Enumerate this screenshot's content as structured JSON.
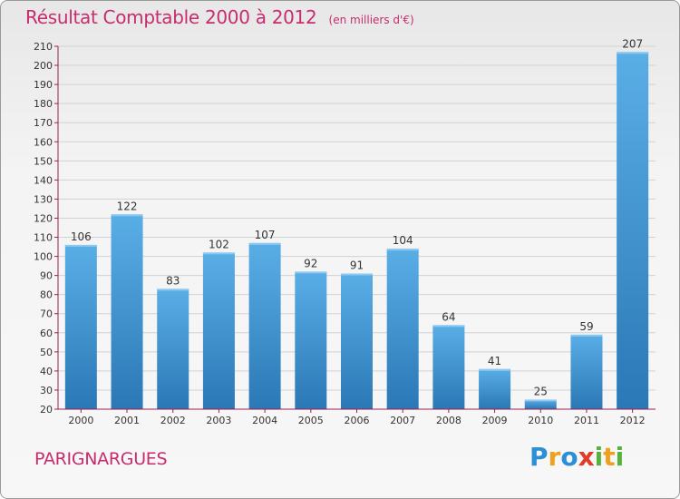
{
  "header": {
    "title": "Résultat Comptable 2000 à 2012",
    "subtitle": "(en milliers d'€)"
  },
  "footer": {
    "commune": "PARIGNARGUES",
    "logo_text": "Proxiti",
    "logo_letters": [
      "P",
      "r",
      "o",
      "x",
      "i",
      "t",
      "i"
    ],
    "logo_colors": [
      "#2b8fd6",
      "#f0a020",
      "#2b8fd6",
      "#e03b2b",
      "#55b33b",
      "#f0a020",
      "#55b33b"
    ]
  },
  "colors": {
    "bar": "#3d97d8",
    "bar_light": "#5aaee6",
    "bar_dark": "#2a78b6",
    "axis": "#9a2050",
    "grid": "#d2d2d2",
    "title": "#c72c6e"
  },
  "chart_data": {
    "type": "bar",
    "categories": [
      "2000",
      "2001",
      "2002",
      "2003",
      "2004",
      "2005",
      "2006",
      "2007",
      "2008",
      "2009",
      "2010",
      "2011",
      "2012"
    ],
    "values": [
      106,
      122,
      83,
      102,
      107,
      92,
      91,
      104,
      64,
      41,
      25,
      59,
      207
    ],
    "ylim": [
      20,
      210
    ],
    "yticks": [
      20,
      30,
      40,
      50,
      60,
      70,
      80,
      90,
      100,
      110,
      120,
      130,
      140,
      150,
      160,
      170,
      180,
      190,
      200,
      210
    ],
    "grid": true,
    "xlabel": "",
    "ylabel": ""
  }
}
